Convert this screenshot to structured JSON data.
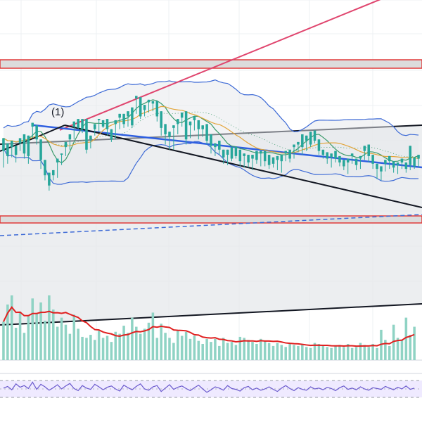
{
  "chart_data": {
    "type": "candlestick",
    "annotations": {
      "pattern_marker": "(1)"
    },
    "grid": true,
    "price_axis": "hidden",
    "colors": {
      "up": "#26a69a",
      "down": "#ef5350",
      "bb_line": "#3d6ad6",
      "bb_fill": "#e6e8eb",
      "ma_fast": "#3a9a6a",
      "ma_slow": "#e2a53a",
      "trend_blue": "#2f5fe0",
      "trend_pink": "#e0456e",
      "trend_black": "#131722",
      "zone_red": "#e03a3a",
      "zone_fill": "#dcdcdc",
      "dashed_blue": "#3d6ad6",
      "vol_up": "#8fd3c4",
      "vol_down": "#f4a6a8",
      "vol_ma": "#e02020",
      "rsi_line": "#6a5acd",
      "rsi_band": "#efeaff",
      "grid": "#eef0f3"
    },
    "candles": [
      [
        0,
        209,
        219,
        196,
        212
      ],
      [
        212,
        205,
        215,
        199,
        207
      ],
      [
        207,
        212,
        217,
        204,
        209
      ],
      [
        209,
        206,
        213,
        200,
        204
      ],
      [
        204,
        215,
        219,
        209,
        213
      ],
      [
        213,
        207,
        222,
        203,
        218
      ],
      [
        218,
        205,
        221,
        199,
        213
      ],
      [
        213,
        228,
        231,
        219,
        226
      ],
      [
        226,
        218,
        229,
        214,
        216
      ],
      [
        216,
        202,
        218,
        195,
        198
      ],
      [
        198,
        190,
        202,
        186,
        189
      ],
      [
        189,
        182,
        192,
        178,
        184
      ],
      [
        184,
        190,
        194,
        186,
        192
      ],
      [
        192,
        200,
        203,
        188,
        198
      ],
      [
        198,
        206,
        207,
        198,
        204
      ],
      [
        204,
        212,
        216,
        205,
        214
      ],
      [
        214,
        218,
        222,
        210,
        220
      ],
      [
        220,
        228,
        232,
        218,
        230
      ],
      [
        230,
        227,
        234,
        226,
        233
      ],
      [
        233,
        226,
        234,
        223,
        232
      ],
      [
        232,
        210,
        234,
        207,
        212
      ],
      [
        212,
        218,
        221,
        211,
        219
      ],
      [
        219,
        226,
        230,
        221,
        226
      ],
      [
        226,
        233,
        234,
        224,
        230
      ],
      [
        230,
        228,
        233,
        227,
        231
      ],
      [
        231,
        226,
        234,
        221,
        223
      ],
      [
        223,
        218,
        226,
        216,
        220
      ],
      [
        220,
        230,
        233,
        218,
        228
      ],
      [
        228,
        235,
        238,
        226,
        236
      ],
      [
        236,
        230,
        238,
        227,
        231
      ],
      [
        231,
        236,
        240,
        228,
        238
      ],
      [
        238,
        229,
        243,
        227,
        240
      ],
      [
        240,
        250,
        252,
        238,
        249
      ],
      [
        249,
        236,
        251,
        234,
        238
      ],
      [
        238,
        241,
        245,
        236,
        244
      ],
      [
        244,
        247,
        249,
        239,
        242
      ],
      [
        242,
        246,
        248,
        240,
        245
      ],
      [
        245,
        236,
        248,
        232,
        237
      ],
      [
        237,
        227,
        240,
        221,
        225
      ],
      [
        225,
        222,
        230,
        214,
        219
      ],
      [
        219,
        220,
        224,
        210,
        212
      ],
      [
        212,
        227,
        229,
        210,
        224
      ],
      [
        224,
        230,
        234,
        222,
        231
      ],
      [
        231,
        235,
        239,
        228,
        237
      ],
      [
        237,
        218,
        240,
        214,
        220
      ],
      [
        220,
        229,
        232,
        219,
        227
      ],
      [
        227,
        233,
        236,
        225,
        230
      ],
      [
        230,
        226,
        233,
        218,
        222
      ],
      [
        222,
        226,
        229,
        220,
        228
      ],
      [
        228,
        217,
        230,
        214,
        219
      ],
      [
        219,
        213,
        222,
        207,
        208
      ],
      [
        208,
        212,
        215,
        205,
        214
      ],
      [
        214,
        210,
        217,
        206,
        207
      ],
      [
        207,
        204,
        210,
        199,
        202
      ],
      [
        202,
        206,
        210,
        198,
        207
      ],
      [
        207,
        203,
        212,
        201,
        209
      ],
      [
        209,
        205,
        212,
        203,
        208
      ],
      [
        208,
        201,
        210,
        197,
        199
      ],
      [
        199,
        205,
        207,
        196,
        204
      ],
      [
        204,
        200,
        206,
        196,
        198
      ],
      [
        198,
        203,
        206,
        194,
        205
      ],
      [
        205,
        202,
        209,
        199,
        200
      ],
      [
        200,
        207,
        209,
        197,
        205
      ],
      [
        205,
        201,
        209,
        197,
        203
      ],
      [
        203,
        198,
        206,
        195,
        201
      ],
      [
        201,
        199,
        204,
        196,
        198
      ],
      [
        198,
        202,
        205,
        194,
        196
      ],
      [
        196,
        201,
        206,
        192,
        204
      ],
      [
        204,
        207,
        209,
        201,
        206
      ],
      [
        206,
        203,
        210,
        200,
        208
      ],
      [
        208,
        212,
        214,
        203,
        210
      ],
      [
        210,
        214,
        216,
        208,
        215
      ],
      [
        215,
        212,
        222,
        206,
        211
      ],
      [
        211,
        217,
        221,
        209,
        219
      ],
      [
        219,
        214,
        224,
        212,
        222
      ],
      [
        222,
        217,
        225,
        215,
        216
      ],
      [
        216,
        209,
        218,
        206,
        208
      ],
      [
        208,
        206,
        210,
        203,
        205
      ],
      [
        205,
        203,
        208,
        199,
        201
      ],
      [
        201,
        204,
        207,
        196,
        206
      ],
      [
        206,
        203,
        209,
        200,
        202
      ],
      [
        202,
        200,
        205,
        197,
        198
      ],
      [
        198,
        197,
        202,
        194,
        196
      ],
      [
        196,
        200,
        203,
        191,
        202
      ],
      [
        202,
        205,
        207,
        199,
        200
      ],
      [
        200,
        198,
        203,
        194,
        197
      ],
      [
        197,
        203,
        205,
        195,
        204
      ],
      [
        204,
        209,
        213,
        202,
        212
      ],
      [
        212,
        205,
        214,
        200,
        204
      ],
      [
        204,
        199,
        206,
        195,
        197
      ],
      [
        197,
        195,
        199,
        187,
        188
      ],
      [
        188,
        193,
        197,
        186,
        195
      ],
      [
        195,
        199,
        202,
        193,
        197
      ],
      [
        197,
        201,
        205,
        195,
        199
      ],
      [
        199,
        196,
        201,
        192,
        194
      ],
      [
        194,
        198,
        200,
        191,
        197
      ],
      [
        197,
        200,
        203,
        195,
        198
      ],
      [
        198,
        195,
        200,
        192,
        196
      ],
      [
        196,
        198,
        213,
        194,
        201
      ],
      [
        201,
        197,
        204,
        195,
        199
      ],
      [
        199,
        203,
        206,
        196,
        201
      ]
    ],
    "volume": [
      38,
      55,
      64,
      32,
      48,
      27,
      44,
      61,
      46,
      57,
      39,
      64,
      50,
      33,
      42,
      35,
      26,
      45,
      31,
      23,
      22,
      25,
      20,
      29,
      22,
      24,
      18,
      28,
      26,
      34,
      27,
      42,
      33,
      26,
      31,
      37,
      47,
      22,
      36,
      27,
      22,
      17,
      30,
      24,
      28,
      21,
      24,
      19,
      16,
      21,
      18,
      21,
      14,
      22,
      17,
      18,
      15,
      23,
      22,
      20,
      18,
      16,
      21,
      19,
      17,
      14,
      17,
      15,
      13,
      16,
      15,
      14,
      16,
      13,
      12,
      17,
      16,
      14,
      13,
      12,
      14,
      15,
      13,
      16,
      12,
      13,
      17,
      15,
      13,
      16,
      12,
      30,
      20,
      14,
      35,
      22,
      20,
      42,
      25,
      33
    ],
    "rsi": [
      52,
      56,
      48,
      62,
      54,
      58,
      51,
      66,
      49,
      61,
      55,
      47,
      53,
      60,
      50,
      57,
      63,
      51,
      46,
      58,
      52,
      49,
      61,
      55,
      48,
      54,
      57,
      50,
      45,
      59,
      53,
      48,
      56,
      62,
      50,
      47,
      55,
      58,
      44,
      52,
      60,
      49,
      54,
      57,
      51,
      46,
      53,
      59,
      50,
      42,
      48,
      55,
      52,
      47,
      58,
      51,
      49,
      45,
      53,
      56,
      48,
      52,
      47,
      50,
      55,
      49,
      44,
      52,
      58,
      51,
      46,
      53,
      49,
      47,
      55,
      50,
      52,
      48,
      54,
      51,
      46,
      53,
      57,
      49,
      52,
      48,
      55,
      50,
      47,
      53,
      51,
      49,
      56,
      52,
      48,
      54,
      50,
      57,
      49,
      52
    ],
    "bollinger_basis": [],
    "upper_zone_label": "",
    "lower_zone_label": ""
  }
}
